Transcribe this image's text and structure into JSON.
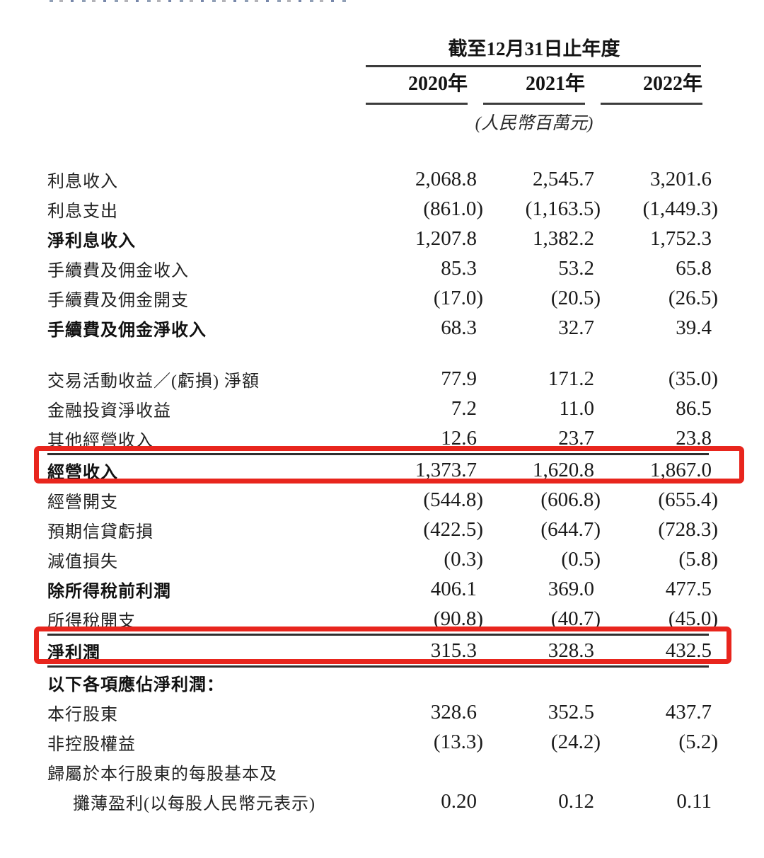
{
  "header": {
    "period": "截至12月31日止年度",
    "years": [
      "2020年",
      "2021年",
      "2022年"
    ],
    "unit_note": "(人民幣百萬元)"
  },
  "annotations": {
    "highlight_color": "#e8251d",
    "highlighted_rows": [
      "經營收入",
      "淨利潤"
    ]
  },
  "table": {
    "rows": [
      {
        "label": "利息收入",
        "values": [
          "2,068.8",
          "2,545.7",
          "3,201.6"
        ]
      },
      {
        "label": "利息支出",
        "values": [
          "(861.0)",
          "(1,163.5)",
          "(1,449.3)"
        ]
      },
      {
        "label": "淨利息收入",
        "values": [
          "1,207.8",
          "1,382.2",
          "1,752.3"
        ],
        "bold": true
      },
      {
        "label": "手續費及佣金收入",
        "values": [
          "85.3",
          "53.2",
          "65.8"
        ]
      },
      {
        "label": "手續費及佣金開支",
        "values": [
          "(17.0)",
          "(20.5)",
          "(26.5)"
        ]
      },
      {
        "label": "手續費及佣金淨收入",
        "values": [
          "68.3",
          "32.7",
          "39.4"
        ],
        "bold": true
      },
      {
        "label": "交易活動收益／(虧損) 淨額",
        "values": [
          "77.9",
          "171.2",
          "(35.0)"
        ],
        "gap_before": true
      },
      {
        "label": "金融投資淨收益",
        "values": [
          "7.2",
          "11.0",
          "86.5"
        ]
      },
      {
        "label": "其他經營收入",
        "values": [
          "12.6",
          "23.7",
          "23.8"
        ]
      },
      {
        "label": "經營收入",
        "values": [
          "1,373.7",
          "1,620.8",
          "1,867.0"
        ],
        "bold": true,
        "highlight": "wide",
        "rule_above": true
      },
      {
        "label": "經營開支",
        "values": [
          "(544.8)",
          "(606.8)",
          "(655.4)"
        ]
      },
      {
        "label": "預期信貸虧損",
        "values": [
          "(422.5)",
          "(644.7)",
          "(728.3)"
        ]
      },
      {
        "label": "減值損失",
        "values": [
          "(0.3)",
          "(0.5)",
          "(5.8)"
        ]
      },
      {
        "label": "除所得稅前利潤",
        "values": [
          "406.1",
          "369.0",
          "477.5"
        ],
        "bold": true
      },
      {
        "label": "所得稅開支",
        "values": [
          "(90.8)",
          "(40.7)",
          "(45.0)"
        ]
      },
      {
        "label": "淨利潤",
        "values": [
          "315.3",
          "328.3",
          "432.5"
        ],
        "bold": true,
        "highlight": "narrow",
        "rule_above": true,
        "rule_below": true
      },
      {
        "label": "以下各項應佔淨利潤：",
        "values": [
          "",
          "",
          ""
        ],
        "bold": true
      },
      {
        "label": "本行股東",
        "values": [
          "328.6",
          "352.5",
          "437.7"
        ]
      },
      {
        "label": "非控股權益",
        "values": [
          "(13.3)",
          "(24.2)",
          "(5.2)"
        ]
      },
      {
        "label": "歸屬於本行股東的每股基本及",
        "values": [
          "",
          "",
          ""
        ]
      },
      {
        "label": "攤薄盈利(以每股人民幣元表示)",
        "values": [
          "0.20",
          "0.12",
          "0.11"
        ],
        "indent": true
      }
    ]
  }
}
